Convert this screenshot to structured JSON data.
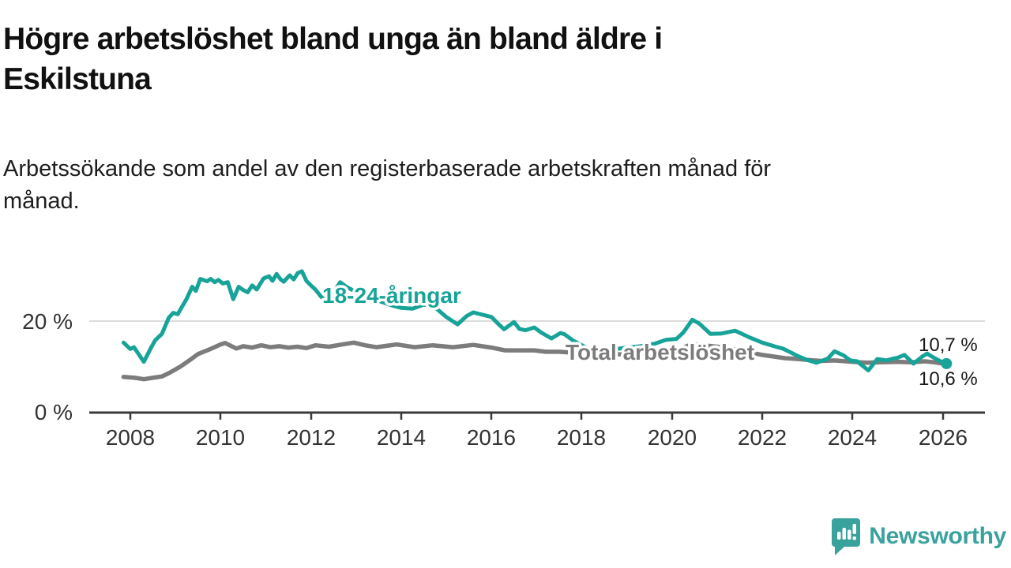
{
  "header": {
    "title_lines": [
      "Högre arbetslöshet bland unga än bland äldre i",
      "Eskilstuna"
    ],
    "subtitle_lines": [
      "Arbetssökande som andel av den registerbaserade arbetskraften månad för",
      "månad."
    ]
  },
  "chart_data": {
    "type": "line",
    "unit": "%",
    "grid": "single horizontal gridline at 20 %",
    "x_axis": {
      "ticks": [
        "2008",
        "2010",
        "2012",
        "2014",
        "2016",
        "2018",
        "2020",
        "2022",
        "2024",
        "2026"
      ],
      "tick_years": [
        2008,
        2010,
        2012,
        2014,
        2016,
        2018,
        2020,
        2022,
        2024,
        2026
      ],
      "range": [
        2007.1,
        2026.9
      ]
    },
    "y_axis": {
      "ticks": [
        {
          "value": 0,
          "label": "0 %"
        },
        {
          "value": 20,
          "label": "20 %"
        }
      ],
      "range_shown": [
        0,
        32
      ]
    },
    "series": [
      {
        "name": "Total arbetslöshet",
        "color": "#7c7c7c",
        "end_label": "10,6 %",
        "points": [
          [
            2007.85,
            7.8
          ],
          [
            2008.1,
            7.6
          ],
          [
            2008.3,
            7.3
          ],
          [
            2008.5,
            7.6
          ],
          [
            2008.7,
            7.9
          ],
          [
            2008.85,
            8.6
          ],
          [
            2009.1,
            10.0
          ],
          [
            2009.35,
            11.7
          ],
          [
            2009.5,
            12.8
          ],
          [
            2009.8,
            14.0
          ],
          [
            2010.0,
            14.9
          ],
          [
            2010.1,
            15.2
          ],
          [
            2010.35,
            14.0
          ],
          [
            2010.5,
            14.5
          ],
          [
            2010.7,
            14.2
          ],
          [
            2010.9,
            14.7
          ],
          [
            2011.1,
            14.3
          ],
          [
            2011.3,
            14.5
          ],
          [
            2011.5,
            14.2
          ],
          [
            2011.7,
            14.4
          ],
          [
            2011.9,
            14.1
          ],
          [
            2012.1,
            14.7
          ],
          [
            2012.4,
            14.4
          ],
          [
            2012.7,
            14.9
          ],
          [
            2012.95,
            15.3
          ],
          [
            2013.2,
            14.7
          ],
          [
            2013.45,
            14.3
          ],
          [
            2013.9,
            14.9
          ],
          [
            2014.3,
            14.3
          ],
          [
            2014.7,
            14.7
          ],
          [
            2015.15,
            14.3
          ],
          [
            2015.6,
            14.8
          ],
          [
            2016.0,
            14.2
          ],
          [
            2016.3,
            13.6
          ],
          [
            2016.95,
            13.6
          ],
          [
            2017.2,
            13.3
          ],
          [
            2017.5,
            13.3
          ],
          [
            2018.0,
            13.0
          ],
          [
            2018.5,
            12.8
          ],
          [
            2019.0,
            12.7
          ],
          [
            2019.5,
            12.6
          ],
          [
            2020.0,
            13.2
          ],
          [
            2020.45,
            15.0
          ],
          [
            2020.8,
            14.6
          ],
          [
            2021.2,
            14.2
          ],
          [
            2021.6,
            13.4
          ],
          [
            2022.0,
            12.6
          ],
          [
            2022.5,
            11.9
          ],
          [
            2022.8,
            11.7
          ],
          [
            2023.0,
            11.5
          ],
          [
            2023.3,
            11.3
          ],
          [
            2023.6,
            11.4
          ],
          [
            2024.0,
            11.1
          ],
          [
            2024.3,
            10.9
          ],
          [
            2024.6,
            11.0
          ],
          [
            2025.0,
            11.1
          ],
          [
            2025.3,
            11.0
          ],
          [
            2025.6,
            11.2
          ],
          [
            2025.8,
            11.0
          ],
          [
            2026.08,
            10.6
          ]
        ]
      },
      {
        "name": "18-24-åringar",
        "color": "#18a398",
        "end_label": "10,7 %",
        "end_dot": true,
        "points": [
          [
            2007.85,
            15.3
          ],
          [
            2008.0,
            13.9
          ],
          [
            2008.08,
            14.3
          ],
          [
            2008.3,
            11.1
          ],
          [
            2008.45,
            14.0
          ],
          [
            2008.55,
            15.8
          ],
          [
            2008.7,
            17.2
          ],
          [
            2008.85,
            20.7
          ],
          [
            2008.95,
            21.8
          ],
          [
            2009.05,
            21.5
          ],
          [
            2009.25,
            24.9
          ],
          [
            2009.37,
            27.5
          ],
          [
            2009.45,
            26.6
          ],
          [
            2009.55,
            29.2
          ],
          [
            2009.7,
            28.7
          ],
          [
            2009.78,
            29.2
          ],
          [
            2009.87,
            28.5
          ],
          [
            2009.95,
            29.0
          ],
          [
            2010.05,
            28.2
          ],
          [
            2010.16,
            28.5
          ],
          [
            2010.28,
            24.8
          ],
          [
            2010.4,
            27.5
          ],
          [
            2010.5,
            26.8
          ],
          [
            2010.6,
            26.3
          ],
          [
            2010.7,
            27.8
          ],
          [
            2010.8,
            26.9
          ],
          [
            2010.95,
            29.3
          ],
          [
            2011.07,
            29.8
          ],
          [
            2011.15,
            28.8
          ],
          [
            2011.24,
            30.3
          ],
          [
            2011.33,
            29.1
          ],
          [
            2011.4,
            28.6
          ],
          [
            2011.53,
            30.0
          ],
          [
            2011.62,
            29.1
          ],
          [
            2011.71,
            30.5
          ],
          [
            2011.8,
            30.9
          ],
          [
            2011.9,
            28.8
          ],
          [
            2012.0,
            27.8
          ],
          [
            2012.1,
            26.9
          ],
          [
            2012.23,
            25.3
          ],
          [
            2012.32,
            24.5
          ],
          [
            2012.45,
            25.8
          ],
          [
            2012.55,
            27.0
          ],
          [
            2012.65,
            28.5
          ],
          [
            2012.8,
            27.4
          ],
          [
            2013.0,
            26.4
          ],
          [
            2013.2,
            25.6
          ],
          [
            2013.4,
            24.7
          ],
          [
            2013.6,
            24.1
          ],
          [
            2013.8,
            23.4
          ],
          [
            2014.0,
            22.9
          ],
          [
            2014.25,
            22.7
          ],
          [
            2014.5,
            23.6
          ],
          [
            2014.75,
            23.0
          ],
          [
            2015.0,
            20.9
          ],
          [
            2015.25,
            19.3
          ],
          [
            2015.45,
            21.1
          ],
          [
            2015.6,
            21.9
          ],
          [
            2015.8,
            21.4
          ],
          [
            2016.0,
            20.9
          ],
          [
            2016.15,
            19.4
          ],
          [
            2016.28,
            18.2
          ],
          [
            2016.5,
            19.8
          ],
          [
            2016.62,
            18.3
          ],
          [
            2016.75,
            18.0
          ],
          [
            2016.95,
            18.6
          ],
          [
            2017.1,
            17.5
          ],
          [
            2017.33,
            16.2
          ],
          [
            2017.53,
            17.4
          ],
          [
            2017.62,
            17.1
          ],
          [
            2017.8,
            15.8
          ],
          [
            2018.1,
            14.2
          ],
          [
            2018.4,
            13.4
          ],
          [
            2018.7,
            13.8
          ],
          [
            2019.0,
            14.2
          ],
          [
            2019.3,
            14.5
          ],
          [
            2019.6,
            15.0
          ],
          [
            2019.87,
            15.9
          ],
          [
            2020.1,
            16.1
          ],
          [
            2020.25,
            17.5
          ],
          [
            2020.45,
            20.3
          ],
          [
            2020.6,
            19.5
          ],
          [
            2020.85,
            17.2
          ],
          [
            2021.1,
            17.3
          ],
          [
            2021.4,
            17.9
          ],
          [
            2021.7,
            16.5
          ],
          [
            2022.0,
            15.3
          ],
          [
            2022.3,
            14.4
          ],
          [
            2022.45,
            14.0
          ],
          [
            2022.6,
            13.3
          ],
          [
            2022.8,
            12.3
          ],
          [
            2023.0,
            11.5
          ],
          [
            2023.2,
            10.9
          ],
          [
            2023.45,
            11.8
          ],
          [
            2023.6,
            13.4
          ],
          [
            2023.8,
            12.5
          ],
          [
            2023.95,
            11.4
          ],
          [
            2024.1,
            11.2
          ],
          [
            2024.35,
            9.2
          ],
          [
            2024.55,
            11.7
          ],
          [
            2024.75,
            11.4
          ],
          [
            2024.9,
            11.8
          ],
          [
            2025.0,
            12.0
          ],
          [
            2025.15,
            12.6
          ],
          [
            2025.35,
            10.7
          ],
          [
            2025.55,
            12.3
          ],
          [
            2025.65,
            12.9
          ],
          [
            2025.8,
            12.0
          ],
          [
            2025.95,
            11.2
          ],
          [
            2026.08,
            10.7
          ]
        ]
      }
    ],
    "colors": {
      "axis": "#3b3b3b",
      "gridline": "#dcdcdc",
      "tick_text": "#333333",
      "value_text": "#1a1a1a"
    }
  },
  "branding": {
    "logo_text": "Newsworthy",
    "logo_color": "#3aa29d",
    "logo_icon": "speech-bubble-bar-chart"
  }
}
